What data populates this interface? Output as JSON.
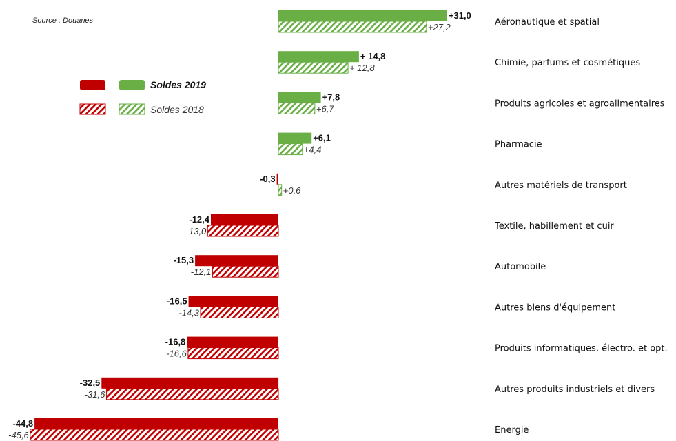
{
  "source": "Source : Douanes",
  "legend": {
    "label_2019": "Soldes 2019",
    "label_2018": "Soldes 2018"
  },
  "colors": {
    "positive": "#6aaf46",
    "negative": "#c00000"
  },
  "chart_data": {
    "type": "bar",
    "orientation": "horizontal",
    "categories": [
      "Aéronautique et spatial",
      "Chimie, parfums et cosmétiques",
      "Produits agricoles et agroalimentaires",
      "Pharmacie",
      "Autres matériels de transport",
      "Textile, habillement et cuir",
      "Automobile",
      "Autres biens d'équipement",
      "Produits informatiques, électro. et opt.",
      "Autres produits industriels et divers",
      "Energie"
    ],
    "series": [
      {
        "name": "Soldes 2019",
        "fill": "solid",
        "values": [
          31.0,
          14.8,
          7.8,
          6.1,
          -0.3,
          -12.4,
          -15.3,
          -16.5,
          -16.8,
          -32.5,
          -44.8
        ],
        "labels": [
          "+31,0",
          "+ 14,8",
          "+7,8",
          "+6,1",
          "-0,3",
          "-12,4",
          "-15,3",
          "-16,5",
          "-16,8",
          "-32,5",
          "-44,8"
        ]
      },
      {
        "name": "Soldes 2018",
        "fill": "hatched",
        "values": [
          27.2,
          12.8,
          6.7,
          4.4,
          0.6,
          -13.0,
          -12.1,
          -14.3,
          -16.6,
          -31.6,
          -45.6
        ],
        "labels": [
          "+27,2",
          "+ 12,8",
          "+6,7",
          "+4,4",
          "+0,6",
          "-13,0",
          "-12,1",
          "-14,3",
          "-16,6",
          "-31,6",
          "-45,6"
        ]
      }
    ],
    "legend_position": "left",
    "grid": false
  }
}
